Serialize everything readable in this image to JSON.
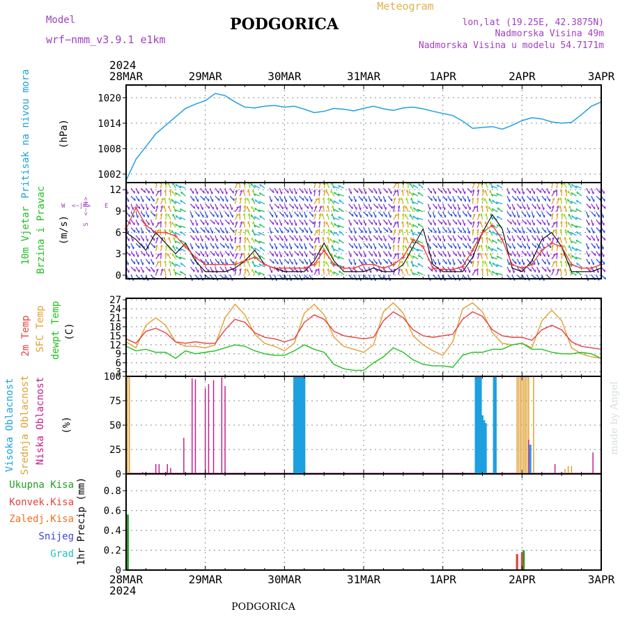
{
  "header": {
    "model_label": "Model",
    "model_name": "wrf−nmm_v3.9.1  e1km",
    "title": "PODGORICA",
    "meteogram_label": "Meteogram",
    "location_line": "lon,lat (19.25E, 42.3875N)",
    "elevation_line": "Nadmorska Visina 49m",
    "model_elevation_line": "Nadmorska Visina u modelu 54.7171m",
    "year": "2024",
    "footer_title": "PODGORICA",
    "credit": "made by Angel"
  },
  "colors": {
    "pressure": "#1ea0e0",
    "temp2m": "#e84040",
    "sfc_temp": "#e0a030",
    "dewpoint": "#20c020",
    "wind_speed": "#e84040",
    "wind_gust": "#000000",
    "high_cloud": "#1ea0e0",
    "mid_cloud": "#e0a030",
    "low_cloud": "#c02090",
    "total_precip": "#20a020",
    "conv_precip": "#e84040",
    "frozen_precip": "#f07020",
    "snow": "#4040e0",
    "hail": "#20c0c0",
    "model_label": "#a040c0",
    "meteogram_label": "#e0b050"
  },
  "chart_data": [
    {
      "id": "pressure",
      "type": "line",
      "ylabel_lines": [
        "Pritisak na nivou mora",
        "(hPa)"
      ],
      "ylim": [
        1000,
        1023
      ],
      "yticks": [
        1002,
        1008,
        1014,
        1020
      ],
      "x_hours": [
        0,
        3,
        6,
        9,
        12,
        15,
        18,
        21,
        24,
        27,
        30,
        33,
        36,
        39,
        42,
        45,
        48,
        51,
        54,
        57,
        60,
        63,
        66,
        69,
        72,
        75,
        78,
        81,
        84,
        87,
        90,
        93,
        96,
        99,
        102,
        105,
        108,
        111,
        114,
        117,
        120,
        123,
        126,
        129,
        132,
        135,
        138,
        141,
        144
      ],
      "values": [
        1000.5,
        1005.5,
        1008.5,
        1011.5,
        1013.5,
        1015.5,
        1017.5,
        1018.5,
        1019.3,
        1021.0,
        1020.5,
        1019.0,
        1017.8,
        1017.6,
        1018.0,
        1018.2,
        1017.8,
        1018.0,
        1017.3,
        1016.5,
        1016.8,
        1017.5,
        1017.3,
        1016.9,
        1017.5,
        1018.0,
        1017.4,
        1017.0,
        1017.6,
        1017.8,
        1017.4,
        1016.8,
        1016.3,
        1015.8,
        1014.5,
        1012.8,
        1013.0,
        1013.2,
        1012.6,
        1013.5,
        1014.6,
        1015.3,
        1015.0,
        1014.3,
        1014.0,
        1014.2,
        1016.0,
        1018.0,
        1019.0
      ]
    },
    {
      "id": "wind",
      "type": "line",
      "ylabel_lines": [
        "10m Vjetar",
        "Brzina i Pravac",
        "(m/s)"
      ],
      "compass_labels": [
        "W",
        "<−|−>",
        "E",
        "N",
        "<−|−>",
        "S"
      ],
      "ylim": [
        -0.5,
        13
      ],
      "yticks": [
        0,
        3,
        6,
        9,
        12
      ],
      "x_hours": [
        0,
        3,
        6,
        9,
        12,
        15,
        18,
        21,
        24,
        27,
        30,
        33,
        36,
        39,
        42,
        45,
        48,
        51,
        54,
        57,
        60,
        63,
        66,
        69,
        72,
        75,
        78,
        81,
        84,
        87,
        90,
        93,
        96,
        99,
        102,
        105,
        108,
        111,
        114,
        117,
        120,
        123,
        126,
        129,
        132,
        135,
        138,
        141,
        144
      ],
      "series": [
        {
          "key": "speed",
          "values": [
            6.5,
            9.5,
            7.0,
            6.0,
            6.0,
            5.5,
            4.0,
            2.5,
            1.5,
            1.5,
            1.5,
            1.5,
            2.0,
            2.5,
            1.5,
            1.0,
            1.0,
            1.0,
            1.0,
            1.5,
            3.5,
            1.5,
            1.0,
            1.0,
            1.5,
            1.5,
            1.0,
            1.5,
            2.5,
            5.0,
            4.0,
            1.0,
            0.8,
            0.8,
            1.2,
            3.5,
            6.0,
            7.0,
            5.0,
            1.5,
            1.0,
            1.5,
            3.5,
            4.5,
            4.0,
            1.5,
            1.0,
            1.0,
            1.5
          ]
        },
        {
          "key": "gust",
          "values": [
            6.0,
            5.0,
            3.5,
            6.0,
            4.5,
            3.0,
            4.5,
            2.0,
            0.5,
            0.5,
            0.5,
            1.0,
            2.0,
            3.5,
            1.5,
            1.0,
            0.5,
            0.5,
            0.5,
            2.0,
            4.5,
            2.0,
            0.5,
            0.5,
            0.5,
            1.0,
            0.5,
            0.5,
            1.5,
            4.0,
            6.5,
            1.5,
            0.5,
            0.5,
            0.5,
            2.5,
            6.0,
            8.5,
            6.5,
            1.0,
            0.5,
            2.0,
            5.0,
            6.0,
            4.0,
            0.5,
            0.5,
            0.5,
            1.0
          ]
        }
      ]
    },
    {
      "id": "temperature",
      "type": "line",
      "ylabel_lines": [
        "2m Temp",
        "SFC Temp",
        "dewpt Temp",
        "(C)"
      ],
      "ylim": [
        1.5,
        27.5
      ],
      "yticks": [
        3,
        6,
        9,
        12,
        15,
        18,
        21,
        24,
        27
      ],
      "x_hours": [
        0,
        3,
        6,
        9,
        12,
        15,
        18,
        21,
        24,
        27,
        30,
        33,
        36,
        39,
        42,
        45,
        48,
        51,
        54,
        57,
        60,
        63,
        66,
        69,
        72,
        75,
        78,
        81,
        84,
        87,
        90,
        93,
        96,
        99,
        102,
        105,
        108,
        111,
        114,
        117,
        120,
        123,
        126,
        129,
        132,
        135,
        138,
        141,
        144
      ],
      "series": [
        {
          "key": "t2m",
          "values": [
            14.0,
            12.5,
            16.5,
            17.5,
            16.0,
            13.0,
            12.5,
            13.0,
            12.5,
            12.5,
            17.0,
            20.5,
            19.5,
            16.0,
            14.5,
            14.0,
            13.0,
            14.0,
            19.5,
            22.0,
            20.5,
            16.5,
            15.0,
            14.5,
            14.0,
            14.5,
            20.0,
            23.0,
            21.0,
            17.0,
            15.0,
            14.5,
            15.0,
            15.5,
            20.5,
            23.0,
            21.5,
            17.0,
            15.0,
            14.5,
            14.5,
            13.5,
            17.0,
            18.5,
            17.0,
            13.0,
            11.5,
            11.0,
            10.5
          ]
        },
        {
          "key": "sfc",
          "values": [
            13.0,
            11.0,
            18.5,
            21.0,
            18.5,
            13.0,
            11.5,
            11.5,
            11.0,
            12.0,
            21.0,
            25.5,
            22.0,
            15.5,
            12.5,
            11.5,
            10.0,
            12.5,
            22.5,
            25.5,
            22.0,
            14.5,
            11.5,
            10.5,
            9.5,
            12.0,
            23.0,
            26.0,
            22.5,
            15.0,
            12.0,
            10.0,
            8.5,
            13.0,
            24.0,
            26.0,
            23.0,
            16.0,
            12.5,
            12.0,
            12.5,
            11.0,
            20.0,
            23.5,
            20.0,
            11.0,
            9.0,
            8.0,
            7.5
          ]
        },
        {
          "key": "dewpt",
          "values": [
            11.5,
            10.0,
            10.5,
            9.5,
            9.5,
            7.5,
            10.0,
            9.0,
            9.5,
            10.0,
            11.0,
            12.0,
            11.5,
            10.0,
            9.0,
            8.5,
            8.5,
            10.0,
            12.0,
            10.5,
            9.5,
            5.5,
            4.0,
            3.5,
            3.5,
            6.0,
            8.0,
            11.0,
            9.5,
            7.0,
            5.5,
            5.0,
            5.0,
            4.5,
            8.5,
            9.5,
            9.5,
            10.5,
            10.5,
            12.0,
            12.5,
            10.5,
            10.5,
            9.5,
            9.0,
            9.0,
            9.5,
            9.0,
            7.5
          ]
        }
      ]
    },
    {
      "id": "clouds",
      "type": "bar",
      "ylabel_lines": [
        "Visoka Oblacnost",
        "Srednja Oblacnost",
        "Niska Oblacnost",
        "(%)"
      ],
      "ylim": [
        0,
        100
      ],
      "yticks": [
        0,
        25,
        50,
        75,
        100
      ],
      "series": [
        {
          "key": "high",
          "bars": [
            [
              51.0,
              100
            ],
            [
              51.5,
              100
            ],
            [
              52.0,
              100
            ],
            [
              52.5,
              100
            ],
            [
              53.0,
              100
            ],
            [
              53.5,
              100
            ],
            [
              54.0,
              100
            ],
            [
              106.0,
              100
            ],
            [
              106.5,
              100
            ],
            [
              107.0,
              100
            ],
            [
              107.5,
              100
            ],
            [
              108.0,
              60
            ],
            [
              108.5,
              55
            ],
            [
              109.0,
              52
            ],
            [
              111.5,
              100
            ],
            [
              112.0,
              100
            ],
            [
              122.5,
              30
            ]
          ]
        },
        {
          "key": "mid",
          "bars": [
            [
              0.5,
              100
            ],
            [
              1.0,
              100
            ],
            [
              118.5,
              100
            ],
            [
              119.0,
              100
            ],
            [
              119.5,
              100
            ],
            [
              120.0,
              100
            ],
            [
              120.5,
              100
            ],
            [
              121.0,
              100
            ],
            [
              121.5,
              100
            ],
            [
              122.0,
              100
            ],
            [
              123.5,
              100
            ],
            [
              133.0,
              5
            ],
            [
              134.0,
              8
            ],
            [
              135.0,
              8
            ]
          ]
        },
        {
          "key": "low",
          "bars": [
            [
              5.0,
              2
            ],
            [
              9.0,
              10
            ],
            [
              10.0,
              10
            ],
            [
              12.5,
              10
            ],
            [
              13.5,
              6
            ],
            [
              17.5,
              37
            ],
            [
              20.0,
              98
            ],
            [
              21.0,
              97
            ],
            [
              24.0,
              88
            ],
            [
              25.0,
              92
            ],
            [
              26.5,
              96
            ],
            [
              29.0,
              99
            ],
            [
              30.0,
              90
            ],
            [
              122.0,
              35
            ],
            [
              130.0,
              10
            ],
            [
              141.5,
              22
            ]
          ]
        }
      ]
    },
    {
      "id": "precip",
      "type": "bar",
      "ylabel_lines": [
        "1hr Precip (mm)"
      ],
      "legend": [
        "Ukupna Kisa",
        "Konvek.Kisa",
        "Zaledj.Kisa",
        "Snijeg",
        "Grad"
      ],
      "ylim": [
        0,
        0.97
      ],
      "yticks": [
        0,
        0.2,
        0.4,
        0.6,
        0.8
      ],
      "ytick_labels": [
        "0",
        "0.2",
        "0.4",
        "0.6",
        "0.8"
      ],
      "series": [
        {
          "key": "total",
          "bars": [
            [
              0.5,
              0.56
            ],
            [
              118.5,
              0.16
            ],
            [
              120.5,
              0.2
            ]
          ]
        },
        {
          "key": "conv",
          "bars": [
            [
              118.5,
              0.16
            ],
            [
              120.0,
              0.18
            ]
          ]
        }
      ]
    }
  ],
  "time_axis": {
    "labels": [
      "28MAR",
      "29MAR",
      "30MAR",
      "31MAR",
      "1APR",
      "2APR",
      "3APR"
    ],
    "hours": [
      0,
      24,
      48,
      72,
      96,
      120,
      144
    ]
  }
}
